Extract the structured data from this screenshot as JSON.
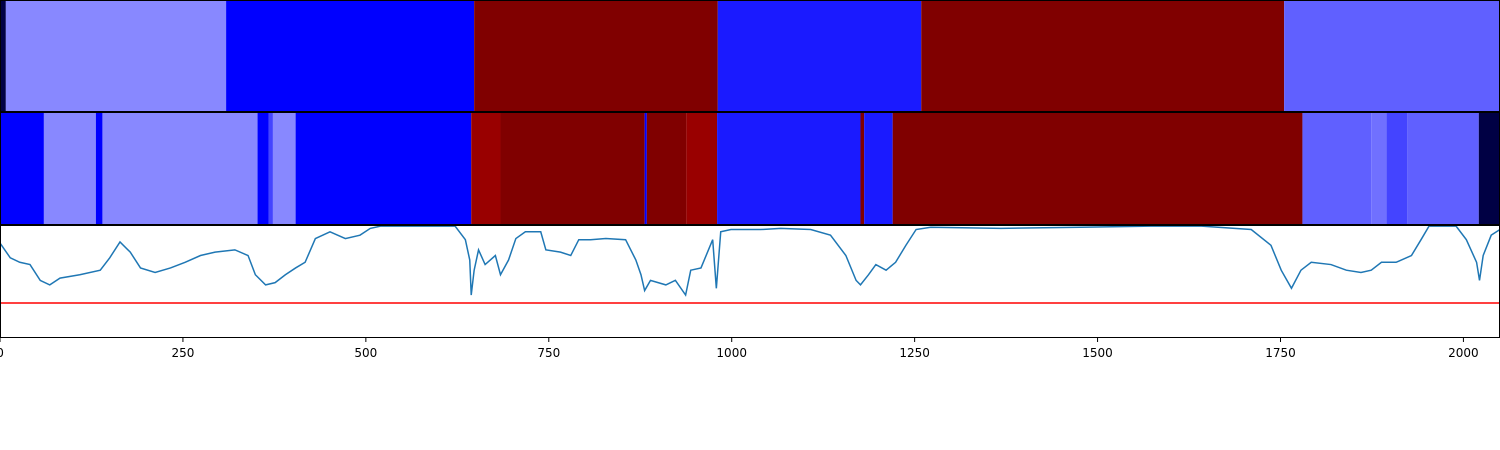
{
  "chart_data": [
    {
      "type": "segments",
      "xlim": [
        0,
        2050
      ],
      "segments": [
        {
          "start": 0,
          "end": 8,
          "color": "#000044"
        },
        {
          "start": 8,
          "end": 309,
          "color": "#8888ff"
        },
        {
          "start": 309,
          "end": 648,
          "color": "#0000ff"
        },
        {
          "start": 648,
          "end": 981,
          "color": "#800000"
        },
        {
          "start": 981,
          "end": 1259,
          "color": "#1a1aff"
        },
        {
          "start": 1259,
          "end": 1755,
          "color": "#800000"
        },
        {
          "start": 1755,
          "end": 2050,
          "color": "#6060ff"
        }
      ]
    },
    {
      "type": "segments",
      "xlim": [
        0,
        2050
      ],
      "segments": [
        {
          "start": 0,
          "end": 60,
          "color": "#0000ff"
        },
        {
          "start": 60,
          "end": 131,
          "color": "#8888ff"
        },
        {
          "start": 131,
          "end": 140,
          "color": "#0000ff"
        },
        {
          "start": 140,
          "end": 352,
          "color": "#8888ff"
        },
        {
          "start": 352,
          "end": 367,
          "color": "#0000ff"
        },
        {
          "start": 367,
          "end": 373,
          "color": "#4444ff"
        },
        {
          "start": 373,
          "end": 404,
          "color": "#8888ff"
        },
        {
          "start": 404,
          "end": 644,
          "color": "#0000ff"
        },
        {
          "start": 644,
          "end": 684,
          "color": "#990000"
        },
        {
          "start": 684,
          "end": 881,
          "color": "#800000"
        },
        {
          "start": 881,
          "end": 884,
          "color": "#0000ff"
        },
        {
          "start": 884,
          "end": 938,
          "color": "#800000"
        },
        {
          "start": 938,
          "end": 980,
          "color": "#990000"
        },
        {
          "start": 980,
          "end": 1176,
          "color": "#1a1aff"
        },
        {
          "start": 1176,
          "end": 1181,
          "color": "#800000"
        },
        {
          "start": 1181,
          "end": 1220,
          "color": "#1a1aff"
        },
        {
          "start": 1220,
          "end": 1780,
          "color": "#800000"
        },
        {
          "start": 1780,
          "end": 1874,
          "color": "#6060ff"
        },
        {
          "start": 1874,
          "end": 1895,
          "color": "#7070ff"
        },
        {
          "start": 1895,
          "end": 1923,
          "color": "#4444ff"
        },
        {
          "start": 1923,
          "end": 2021,
          "color": "#6060ff"
        },
        {
          "start": 2021,
          "end": 2050,
          "color": "#000044"
        }
      ]
    },
    {
      "type": "line",
      "xlim": [
        0,
        2050
      ],
      "ylim": [
        0,
        1
      ],
      "color": "#1f77b4",
      "hline": 0.31,
      "hline_color": "#ff0000",
      "xticks": [
        0,
        250,
        500,
        750,
        1000,
        1250,
        1500,
        1750,
        2000
      ],
      "x": [
        0,
        14,
        27,
        41,
        55,
        68,
        82,
        109,
        137,
        150,
        164,
        178,
        192,
        212,
        233,
        253,
        274,
        294,
        321,
        339,
        349,
        363,
        376,
        390,
        404,
        417,
        431,
        451,
        472,
        492,
        506,
        520,
        547,
        602,
        622,
        636,
        642,
        644,
        648,
        654,
        663,
        677,
        684,
        695,
        705,
        718,
        739,
        746,
        766,
        780,
        791,
        807,
        828,
        855,
        869,
        876,
        881,
        889,
        910,
        923,
        937,
        944,
        958,
        974,
        979,
        985,
        999,
        1040,
        1067,
        1108,
        1135,
        1156,
        1170,
        1176,
        1187,
        1197,
        1211,
        1224,
        1238,
        1252,
        1272,
        1368,
        1477,
        1573,
        1642,
        1710,
        1737,
        1751,
        1765,
        1778,
        1792,
        1819,
        1840,
        1860,
        1874,
        1888,
        1908,
        1929,
        1943,
        1953,
        1990,
        2004,
        2018,
        2022,
        2027,
        2038,
        2050
      ],
      "values": [
        0.84,
        0.71,
        0.67,
        0.65,
        0.51,
        0.47,
        0.53,
        0.56,
        0.6,
        0.71,
        0.85,
        0.76,
        0.62,
        0.58,
        0.62,
        0.67,
        0.73,
        0.76,
        0.78,
        0.73,
        0.56,
        0.47,
        0.49,
        0.56,
        0.62,
        0.67,
        0.88,
        0.94,
        0.88,
        0.91,
        0.97,
        0.99,
        0.99,
        0.99,
        0.99,
        0.87,
        0.69,
        0.38,
        0.6,
        0.78,
        0.65,
        0.73,
        0.56,
        0.69,
        0.88,
        0.94,
        0.94,
        0.78,
        0.76,
        0.73,
        0.87,
        0.87,
        0.88,
        0.87,
        0.69,
        0.56,
        0.42,
        0.51,
        0.47,
        0.51,
        0.38,
        0.6,
        0.62,
        0.87,
        0.44,
        0.94,
        0.96,
        0.96,
        0.97,
        0.96,
        0.91,
        0.73,
        0.51,
        0.47,
        0.56,
        0.65,
        0.6,
        0.67,
        0.82,
        0.96,
        0.98,
        0.97,
        0.98,
        0.99,
        0.99,
        0.96,
        0.82,
        0.6,
        0.44,
        0.6,
        0.67,
        0.65,
        0.6,
        0.58,
        0.6,
        0.67,
        0.67,
        0.73,
        0.88,
        0.99,
        0.99,
        0.87,
        0.67,
        0.51,
        0.73,
        0.91,
        0.96
      ]
    }
  ]
}
